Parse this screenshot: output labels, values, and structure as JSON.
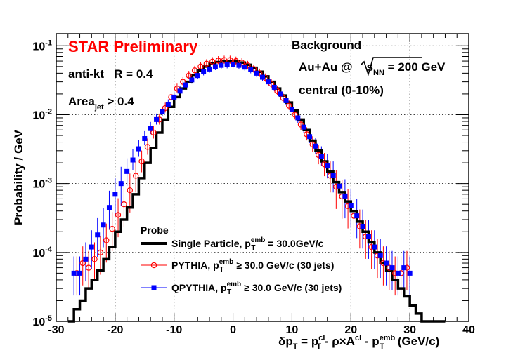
{
  "chart_data": {
    "type": "scatter",
    "y_scale": "log",
    "xlim": [
      -30,
      40
    ],
    "ylim": [
      1e-05,
      0.15
    ],
    "x_ticks": [
      -30,
      -20,
      -10,
      0,
      10,
      20,
      30,
      40
    ],
    "x_tick_labels": [
      "-30",
      "-20",
      "-10",
      "0",
      "10",
      "20",
      "30",
      "40"
    ],
    "y_ticks": [
      1e-05,
      0.0001,
      0.001,
      0.01,
      0.1
    ],
    "y_tick_labels": [
      {
        "base": "10",
        "exp": "-5"
      },
      {
        "base": "10",
        "exp": "-4"
      },
      {
        "base": "10",
        "exp": "-3"
      },
      {
        "base": "10",
        "exp": "-2"
      },
      {
        "base": "10",
        "exp": "-1"
      }
    ],
    "grid": true,
    "ylabel": "Probability / GeV",
    "xlabel": {
      "delta": "δ",
      "p": "p",
      "t": "T",
      "eq": " = ",
      "cl": "cl",
      "minus_rho": " - ρ×A",
      "minus": " - ",
      "emb": "emb",
      "unit": " (GeV/c)"
    },
    "annotations": {
      "star": "STAR Preliminary",
      "background": "Background",
      "algo": "anti-kt   R = 0.4",
      "area_main": "Area",
      "area_sub": "jet",
      "area_tail": " > 0.4",
      "system_main": "Au+Au @",
      "system_s": "s",
      "system_sub": "NN",
      "system_tail": " = 200 GeV",
      "centrality": "central (0-10%)"
    },
    "legend": {
      "title": "Probe",
      "position": "bottom-center",
      "entries": [
        {
          "main": "Single Particle, p",
          "sub": "T",
          "sup": "emb",
          "tail": " = 30.0GeV/c"
        },
        {
          "main": "PYTHIA, p",
          "sub": "T",
          "sup": "emb",
          "tail": " ≥ 30.0 GeV/c (30 jets)"
        },
        {
          "main": "QPYTHIA, p",
          "sub": "T",
          "sup": "emb",
          "tail": " ≥ 30.0 GeV/c (30 jets)"
        }
      ]
    },
    "series": [
      {
        "name": "Single Particle",
        "style": "step",
        "color": "#000000",
        "x": [
          -28,
          -27,
          -26,
          -25,
          -24,
          -23,
          -22,
          -21,
          -20,
          -19,
          -18,
          -17,
          -16,
          -15,
          -14,
          -13,
          -12,
          -11,
          -10,
          -9,
          -8,
          -7,
          -6,
          -5,
          -4,
          -3,
          -2,
          -1,
          0,
          1,
          2,
          3,
          4,
          5,
          6,
          7,
          8,
          9,
          10,
          11,
          12,
          13,
          14,
          15,
          16,
          17,
          18,
          19,
          20,
          21,
          22,
          23,
          24,
          25,
          26,
          27,
          28,
          29,
          30,
          31,
          32,
          33,
          34,
          35
        ],
        "values": [
          1e-05,
          1.5e-05,
          2e-05,
          3e-05,
          4e-05,
          5.5e-05,
          8e-05,
          0.00012,
          0.0002,
          0.0003,
          0.00045,
          0.0007,
          0.0012,
          0.002,
          0.0033,
          0.0055,
          0.0085,
          0.013,
          0.018,
          0.024,
          0.03,
          0.037,
          0.044,
          0.05,
          0.055,
          0.058,
          0.06,
          0.06,
          0.059,
          0.057,
          0.053,
          0.048,
          0.042,
          0.036,
          0.03,
          0.024,
          0.019,
          0.015,
          0.0115,
          0.0085,
          0.006,
          0.0042,
          0.003,
          0.0021,
          0.0015,
          0.00105,
          0.00075,
          0.00055,
          0.0004,
          0.00028,
          0.0002,
          0.00014,
          0.0001,
          7e-05,
          5.5e-05,
          4e-05,
          3e-05,
          2.3e-05,
          1.7e-05,
          1.3e-05,
          1e-05,
          1e-05,
          1e-05,
          1e-05
        ]
      },
      {
        "name": "PYTHIA",
        "style": "open-circle",
        "color": "#ff0000",
        "x": [
          -26.5,
          -25.5,
          -24.5,
          -23.5,
          -22.5,
          -21.5,
          -20.5,
          -19.5,
          -18.5,
          -17.5,
          -16.5,
          -15.5,
          -14.5,
          -13.5,
          -12.5,
          -11.5,
          -10.5,
          -9.5,
          -8.5,
          -7.5,
          -6.5,
          -5.5,
          -4.5,
          -3.5,
          -2.5,
          -1.5,
          -0.5,
          0.5,
          1.5,
          2.5,
          3.5,
          4.5,
          5.5,
          6.5,
          7.5,
          8.5,
          9.5,
          10.5,
          11.5,
          12.5,
          13.5,
          14.5,
          15.5,
          16.5,
          17.5,
          18.5,
          19.5,
          20.5,
          21.5,
          22.5,
          23.5,
          24.5,
          25.5,
          26.5,
          27.5,
          28.5,
          29.5
        ],
        "values": [
          5e-05,
          7e-05,
          6e-05,
          8e-05,
          0.0001,
          0.00015,
          0.00022,
          0.00035,
          0.0005,
          0.0008,
          0.0013,
          0.0021,
          0.0034,
          0.0055,
          0.0085,
          0.0125,
          0.018,
          0.024,
          0.03,
          0.037,
          0.044,
          0.05,
          0.055,
          0.059,
          0.061,
          0.062,
          0.062,
          0.06,
          0.057,
          0.052,
          0.046,
          0.04,
          0.034,
          0.028,
          0.022,
          0.0175,
          0.0135,
          0.01,
          0.0072,
          0.0052,
          0.0037,
          0.0026,
          0.0019,
          0.0013,
          0.0009,
          0.00065,
          0.00047,
          0.00034,
          0.00024,
          0.00017,
          0.00012,
          9e-05,
          7e-05,
          6e-05,
          5e-05,
          5e-05,
          6e-05
        ]
      },
      {
        "name": "QPYTHIA",
        "style": "filled-square",
        "color": "#0000ff",
        "x": [
          -27,
          -26,
          -25,
          -24,
          -23,
          -22,
          -21,
          -20,
          -19,
          -18,
          -17,
          -16,
          -15,
          -14,
          -13,
          -12,
          -11,
          -10,
          -9,
          -8,
          -7,
          -6,
          -5,
          -4,
          -3,
          -2,
          -1,
          0,
          1,
          2,
          3,
          4,
          5,
          6,
          7,
          8,
          9,
          10,
          11,
          12,
          13,
          14,
          15,
          16,
          17,
          18,
          19,
          20,
          21,
          22,
          23,
          24,
          25,
          26,
          27,
          28,
          29,
          30
        ],
        "values": [
          5e-05,
          5e-05,
          8e-05,
          0.00012,
          0.00018,
          0.00025,
          0.00045,
          0.0007,
          0.001,
          0.0015,
          0.0022,
          0.0032,
          0.0045,
          0.0063,
          0.0085,
          0.011,
          0.014,
          0.018,
          0.022,
          0.027,
          0.032,
          0.037,
          0.042,
          0.046,
          0.05,
          0.052,
          0.053,
          0.053,
          0.052,
          0.049,
          0.045,
          0.04,
          0.035,
          0.03,
          0.025,
          0.02,
          0.016,
          0.012,
          0.009,
          0.0066,
          0.0048,
          0.0035,
          0.0025,
          0.0018,
          0.0013,
          0.00092,
          0.00066,
          0.00048,
          0.00034,
          0.00024,
          0.00017,
          0.00012,
          9e-05,
          7e-05,
          6e-05,
          5e-05,
          6e-05,
          5e-05
        ]
      }
    ]
  }
}
